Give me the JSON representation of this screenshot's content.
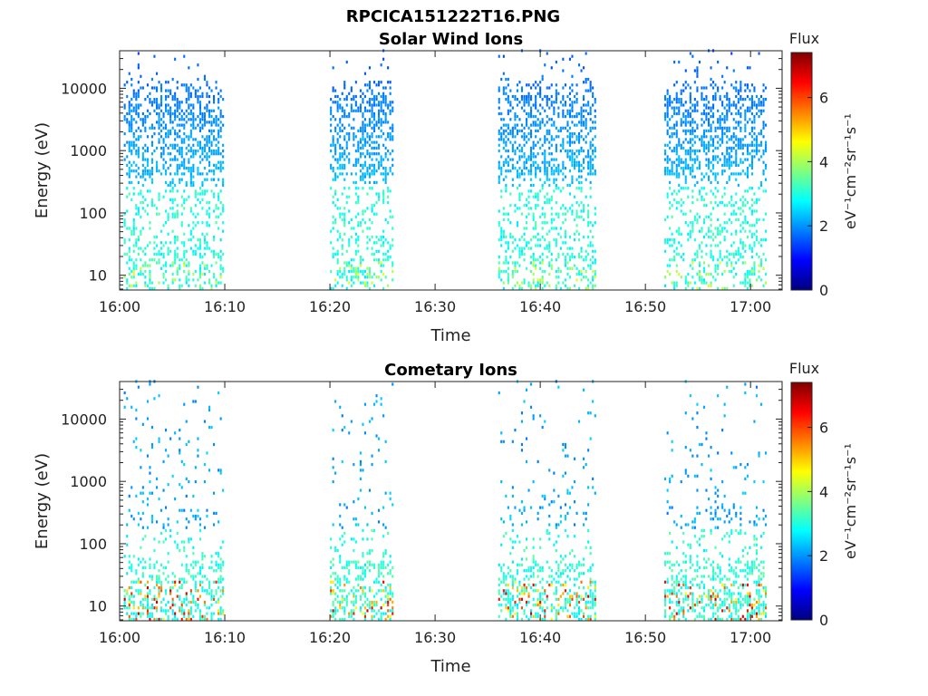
{
  "figure_title": "RPCICA151222T16.PNG",
  "chart_data": [
    {
      "type": "heatmap",
      "title": "Solar Wind Ions",
      "xlabel": "Time",
      "ylabel": "Energy (eV)",
      "y_scale": "log",
      "x_range_minutes": [
        0,
        63
      ],
      "y_range": [
        5.8,
        40000
      ],
      "x_ticks": [
        {
          "label": "16:00",
          "value": 0
        },
        {
          "label": "16:10",
          "value": 10
        },
        {
          "label": "16:20",
          "value": 20
        },
        {
          "label": "16:30",
          "value": 30
        },
        {
          "label": "16:40",
          "value": 40
        },
        {
          "label": "16:50",
          "value": 50
        },
        {
          "label": "17:00",
          "value": 60
        }
      ],
      "y_ticks": [
        {
          "label": "10",
          "value": 10
        },
        {
          "label": "100",
          "value": 100
        },
        {
          "label": "1000",
          "value": 1000
        },
        {
          "label": "10000",
          "value": 10000
        }
      ],
      "bursts": [
        {
          "start": 0.4,
          "end": 10.0
        },
        {
          "start": 20.0,
          "end": 26.0
        },
        {
          "start": 36.0,
          "end": 45.3
        },
        {
          "start": 51.8,
          "end": 61.5
        }
      ],
      "colorbar": {
        "title": "Flux",
        "label": "eV⁻¹cm⁻²sr⁻¹s⁻¹",
        "range": [
          0,
          7.4
        ],
        "ticks": [
          "0",
          "2",
          "4",
          "6"
        ],
        "colormap": "jet"
      }
    },
    {
      "type": "heatmap",
      "title": "Cometary Ions",
      "xlabel": "Time",
      "ylabel": "Energy (eV)",
      "y_scale": "log",
      "x_range_minutes": [
        0,
        63
      ],
      "y_range": [
        5.8,
        40000
      ],
      "x_ticks": [
        {
          "label": "16:00",
          "value": 0
        },
        {
          "label": "16:10",
          "value": 10
        },
        {
          "label": "16:20",
          "value": 20
        },
        {
          "label": "16:30",
          "value": 30
        },
        {
          "label": "16:40",
          "value": 40
        },
        {
          "label": "16:50",
          "value": 50
        },
        {
          "label": "17:00",
          "value": 60
        }
      ],
      "y_ticks": [
        {
          "label": "10",
          "value": 10
        },
        {
          "label": "100",
          "value": 100
        },
        {
          "label": "1000",
          "value": 1000
        },
        {
          "label": "10000",
          "value": 10000
        }
      ],
      "bursts": [
        {
          "start": 0.4,
          "end": 10.0
        },
        {
          "start": 20.0,
          "end": 26.0
        },
        {
          "start": 36.0,
          "end": 45.3
        },
        {
          "start": 51.8,
          "end": 61.5
        }
      ],
      "colorbar": {
        "title": "Flux",
        "label": "eV⁻¹cm⁻²sr⁻¹s⁻¹",
        "range": [
          0,
          7.4
        ],
        "ticks": [
          "0",
          "2",
          "4",
          "6"
        ],
        "colormap": "jet"
      }
    }
  ]
}
